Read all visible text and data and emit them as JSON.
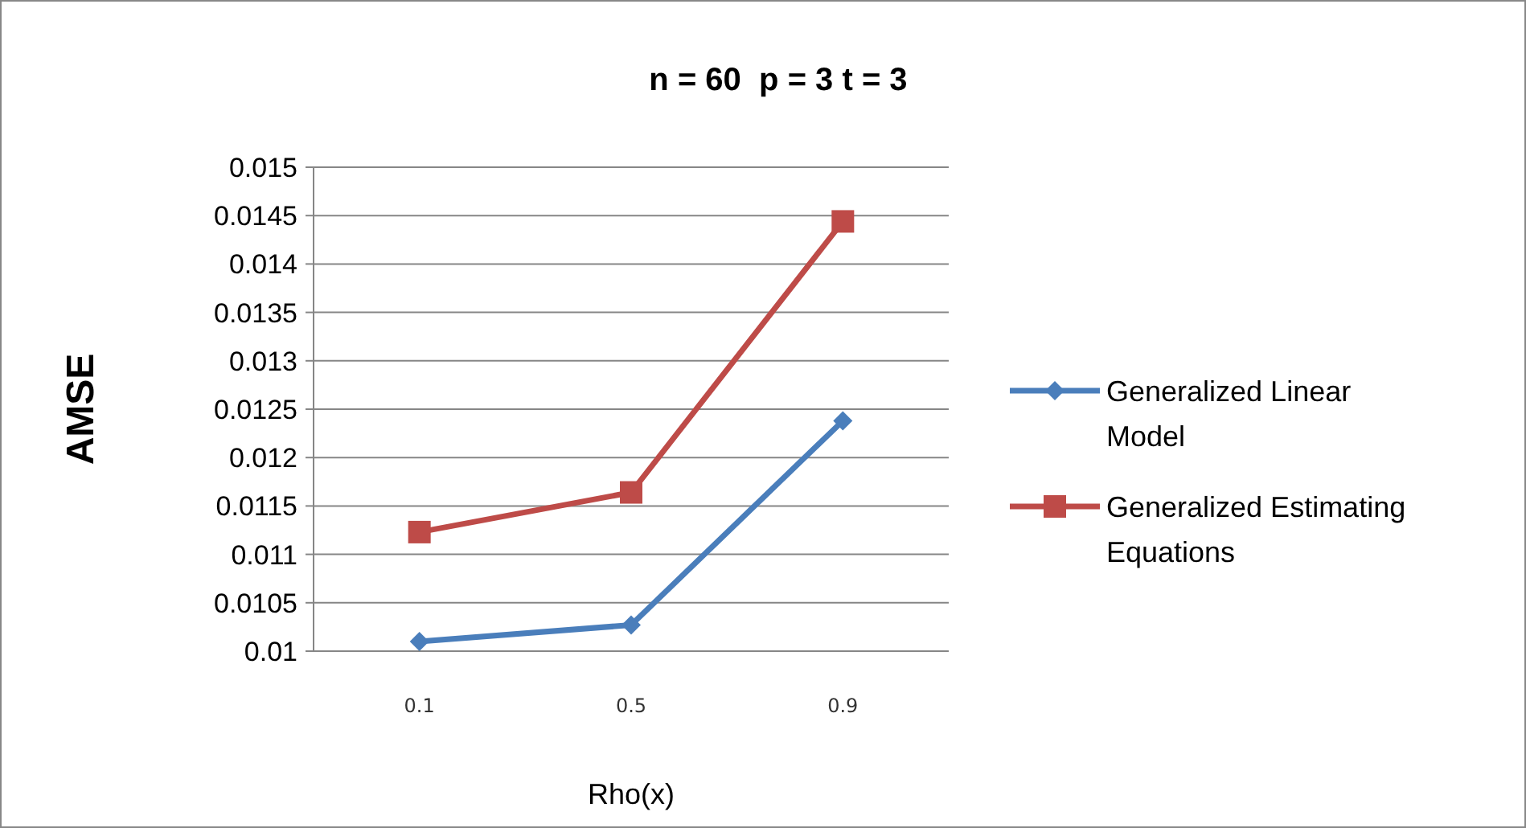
{
  "chart_data": {
    "type": "line",
    "title": "n = 60  p = 3 t = 3",
    "xlabel": "Rho(x)",
    "ylabel": "AMSE",
    "categories": [
      "0.1",
      "0.5",
      "0.9"
    ],
    "series": [
      {
        "name": "Generalized Linear Model",
        "color": "#4a7ebb",
        "marker": "diamond",
        "values": [
          0.0101,
          0.01027,
          0.01238
        ]
      },
      {
        "name": "Generalized Estimating Equations",
        "color": "#be4b48",
        "marker": "square",
        "values": [
          0.01123,
          0.01164,
          0.01444
        ]
      }
    ],
    "ylim": [
      0.01,
      0.015
    ],
    "yticks": [
      0.01,
      0.0105,
      0.011,
      0.0115,
      0.012,
      0.0125,
      0.013,
      0.0135,
      0.014,
      0.0145,
      0.015
    ],
    "grid": "y",
    "legend": "right",
    "line_style": "solid"
  }
}
